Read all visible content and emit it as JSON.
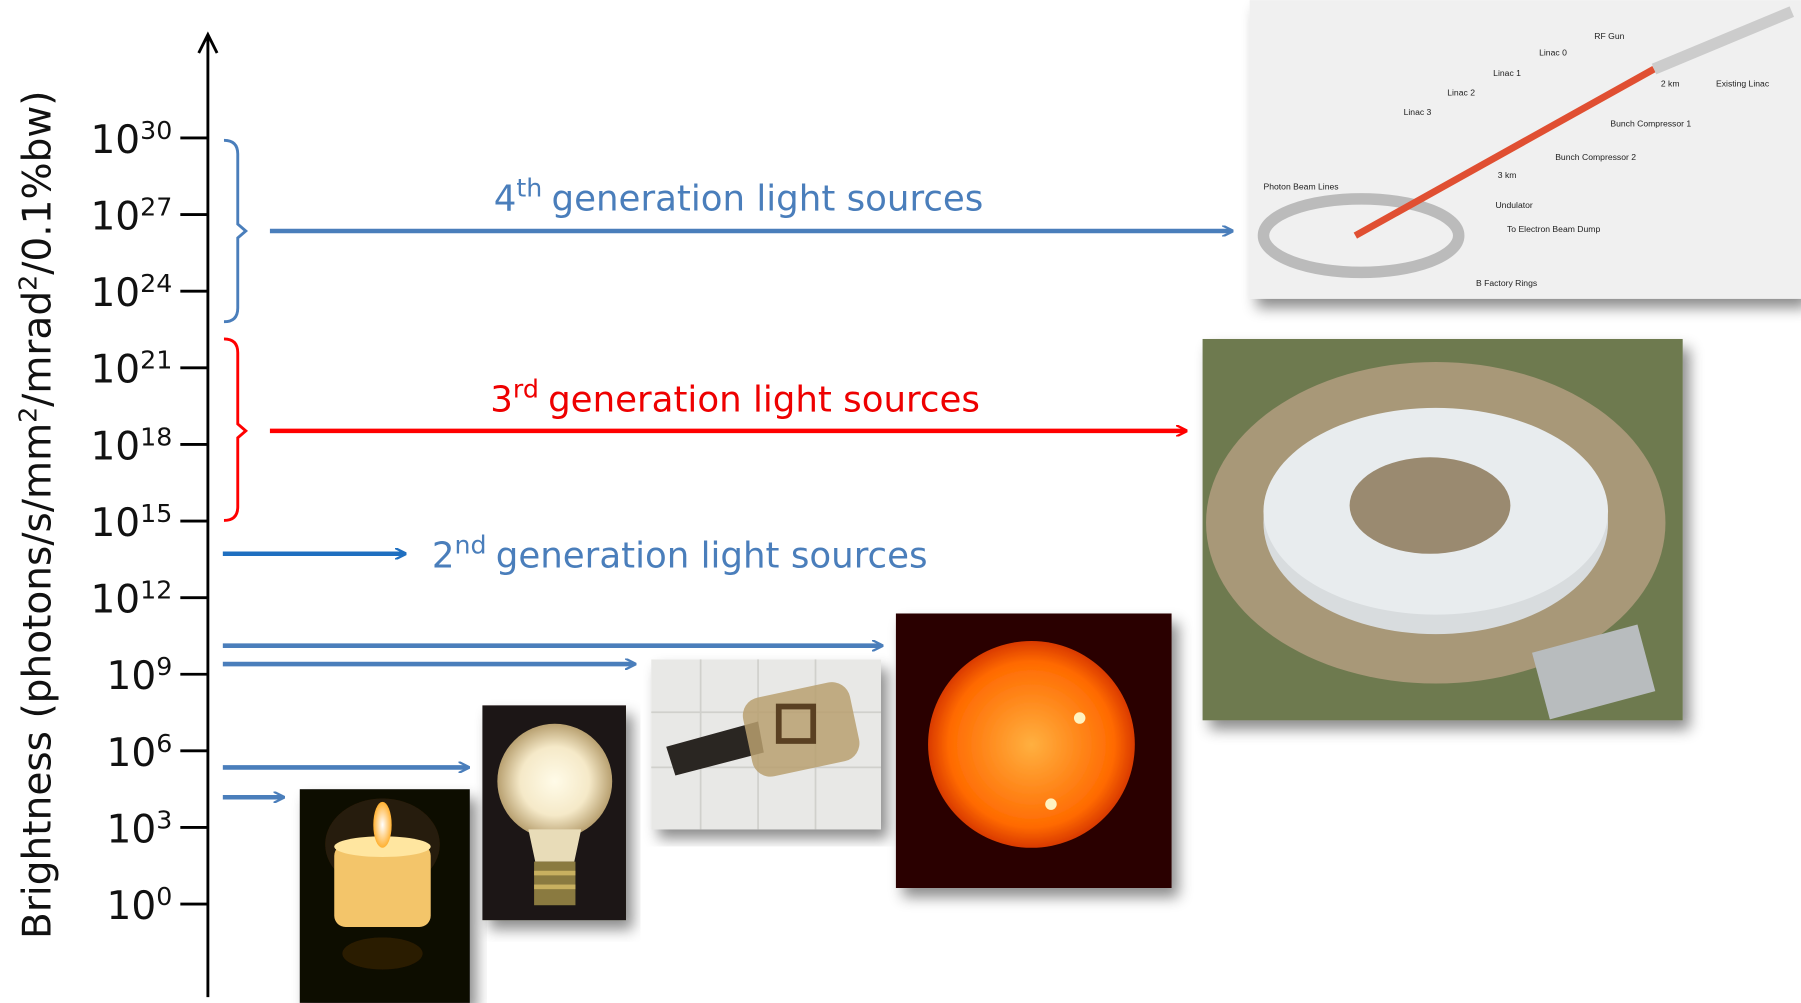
{
  "axis": {
    "label": {
      "parts": [
        "Brightness (photons/s/mm",
        "2",
        "/mrad",
        "2",
        "/0.1%bw)"
      ]
    },
    "ticks": [
      {
        "base": "10",
        "exponent": "30"
      },
      {
        "base": "10",
        "exponent": "27"
      },
      {
        "base": "10",
        "exponent": "24"
      },
      {
        "base": "10",
        "exponent": "21"
      },
      {
        "base": "10",
        "exponent": "18"
      },
      {
        "base": "10",
        "exponent": "15"
      },
      {
        "base": "10",
        "exponent": "12"
      },
      {
        "base": "10",
        "exponent": "9"
      },
      {
        "base": "10",
        "exponent": "6"
      },
      {
        "base": "10",
        "exponent": "3"
      },
      {
        "base": "10",
        "exponent": "0"
      }
    ]
  },
  "labels": [
    {
      "number": "4",
      "suffix": "th",
      "text": "generation light sources"
    },
    {
      "number": "3",
      "suffix": "rd",
      "text": "generation light sources"
    },
    {
      "number": "2",
      "suffix": "nd",
      "text": "generation light sources"
    }
  ],
  "diagram": {
    "labels": [
      "RF Gun",
      "Linac 0",
      "Linac 1",
      "Linac 2",
      "Linac 3",
      "2 km",
      "Existing Linac",
      "Bunch Compressor 1",
      "Bunch Compressor 2",
      "3 km",
      "Photon Beam Lines",
      "Undulator",
      "To Electron Beam Dump",
      "B Factory Rings"
    ]
  }
}
